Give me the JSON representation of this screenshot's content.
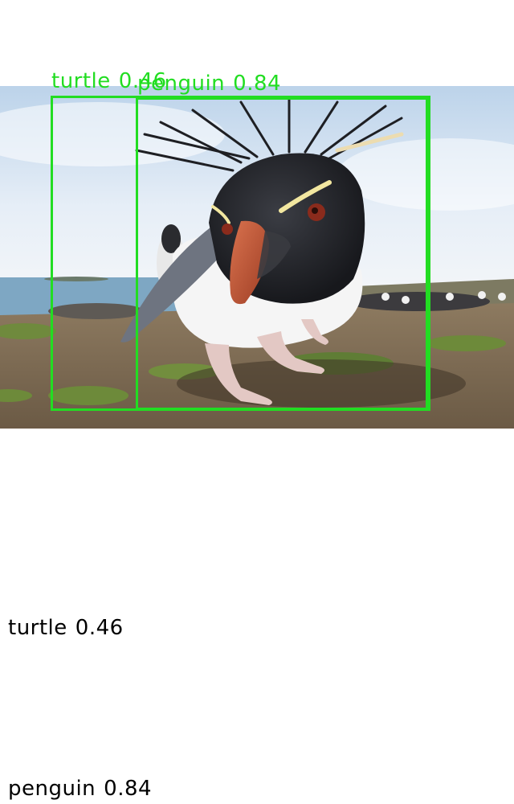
{
  "image": {
    "subject": "rockhopper-penguin-photo"
  },
  "detections": [
    {
      "class_name": "turtle",
      "score": "0.46",
      "color": "#22dd22"
    },
    {
      "class_name": "penguin",
      "score": "0.84",
      "color": "#22dd22"
    }
  ],
  "legend": [
    {
      "class_name": "turtle",
      "score": "0.46"
    },
    {
      "class_name": "penguin",
      "score": "0.84"
    }
  ]
}
